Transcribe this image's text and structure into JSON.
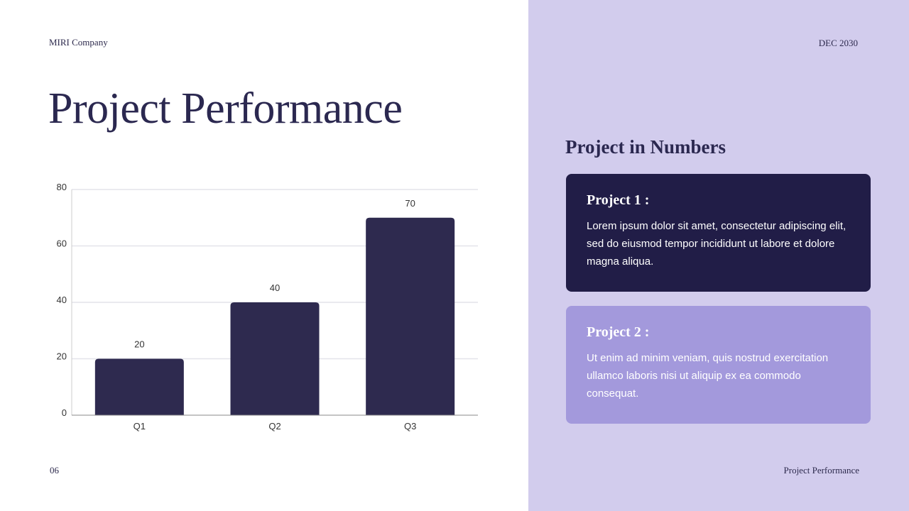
{
  "header": {
    "company": "MIRI Company",
    "date": "DEC 2030"
  },
  "title": "Project Performance",
  "footer": {
    "page_number": "06",
    "label": "Project Performance"
  },
  "sidebar": {
    "heading": "Project in Numbers",
    "cards": [
      {
        "title": "Project 1 :",
        "text": "Lorem ipsum dolor sit amet, consectetur adipiscing elit, sed do eiusmod tempor incididunt ut labore et dolore magna aliqua."
      },
      {
        "title": "Project 2 :",
        "text": "Ut enim ad minim veniam, quis nostrud exercitation ullamco laboris nisi ut aliquip ex ea commodo consequat."
      }
    ]
  },
  "colors": {
    "bar": "#2e2a4f",
    "panel": "#d2cced",
    "card1": "#211d47",
    "card2": "#a399dc"
  },
  "chart_data": {
    "type": "bar",
    "categories": [
      "Q1",
      "Q2",
      "Q3"
    ],
    "values": [
      20,
      40,
      70
    ],
    "ylim": [
      0,
      80
    ],
    "yticks": [
      0,
      20,
      40,
      60,
      80
    ],
    "grid": true,
    "data_labels": true
  }
}
